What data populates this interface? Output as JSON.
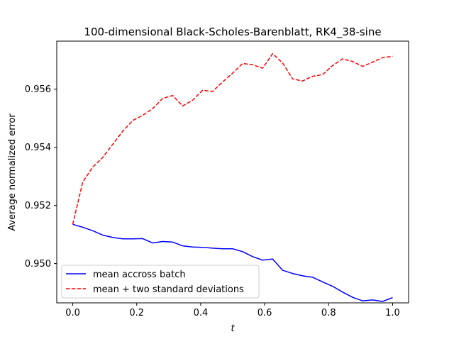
{
  "chart_data": {
    "type": "line",
    "title": "100-dimensional Black-Scholes-Barenblatt, RK4_38-sine",
    "xlabel": "t",
    "ylabel": "Average normalized error",
    "xlim": [
      -0.05,
      1.05
    ],
    "ylim": [
      0.94865,
      0.95765
    ],
    "xticks": [
      0.0,
      0.2,
      0.4,
      0.6,
      0.8,
      1.0
    ],
    "xtick_labels": [
      "0.0",
      "0.2",
      "0.4",
      "0.6",
      "0.8",
      "1.0"
    ],
    "yticks": [
      0.95,
      0.952,
      0.954,
      0.956
    ],
    "ytick_labels": [
      "0.950",
      "0.952",
      "0.954",
      "0.956"
    ],
    "grid": false,
    "legend_position": "lower-left",
    "x": [
      0.0,
      0.03125,
      0.0625,
      0.09375,
      0.125,
      0.15625,
      0.1875,
      0.21875,
      0.25,
      0.28125,
      0.3125,
      0.34375,
      0.375,
      0.40625,
      0.4375,
      0.46875,
      0.5,
      0.53125,
      0.5625,
      0.59375,
      0.625,
      0.65625,
      0.6875,
      0.71875,
      0.75,
      0.78125,
      0.8125,
      0.84375,
      0.875,
      0.90625,
      0.9375,
      0.96875,
      1.0
    ],
    "series": [
      {
        "name": "mean accross batch",
        "color": "#0000ff",
        "linestyle": "solid",
        "values": [
          0.95135,
          0.95125,
          0.95113,
          0.95098,
          0.9509,
          0.95085,
          0.95085,
          0.95086,
          0.95071,
          0.95076,
          0.95074,
          0.95061,
          0.95057,
          0.95056,
          0.95053,
          0.95051,
          0.95051,
          0.95041,
          0.95024,
          0.95012,
          0.95016,
          0.94977,
          0.94966,
          0.94958,
          0.94953,
          0.94937,
          0.94922,
          0.94902,
          0.94884,
          0.94872,
          0.94875,
          0.9487,
          0.94883
        ]
      },
      {
        "name": "mean + two standard deviations",
        "color": "#ff0000",
        "linestyle": "dashed",
        "values": [
          0.95135,
          0.9528,
          0.95332,
          0.95365,
          0.9541,
          0.95455,
          0.95492,
          0.9551,
          0.95533,
          0.95568,
          0.95578,
          0.95542,
          0.95562,
          0.95596,
          0.95592,
          0.95625,
          0.95655,
          0.95688,
          0.95684,
          0.95672,
          0.95722,
          0.9569,
          0.95635,
          0.95628,
          0.95644,
          0.9565,
          0.95681,
          0.95704,
          0.95695,
          0.95678,
          0.95693,
          0.95708,
          0.95713
        ]
      }
    ]
  }
}
